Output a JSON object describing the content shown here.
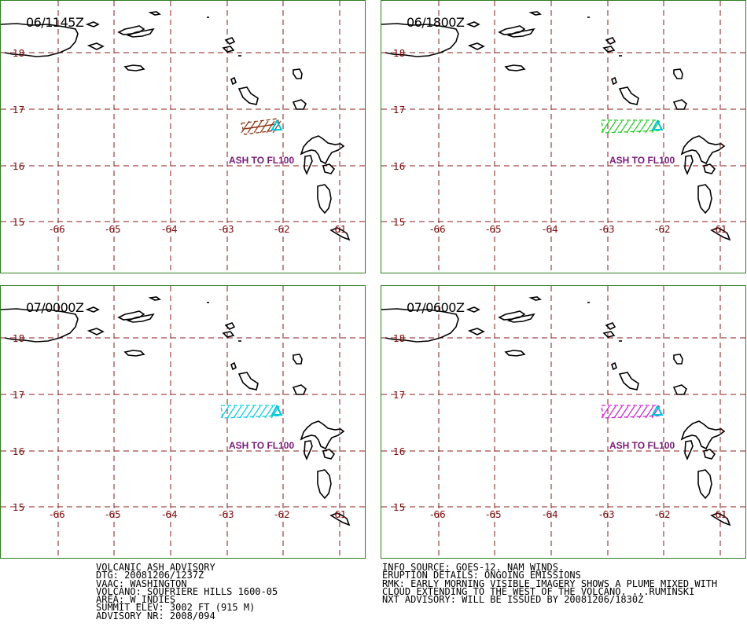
{
  "colors": {
    "panel_border": "#2e7d1f",
    "grid": "#8b1a1a",
    "coast": "#000000",
    "volcano_marker": "#00c8d8",
    "ash_label": "#7a1a7a"
  },
  "map": {
    "lon_ticks": [
      "-66",
      "-65",
      "-64",
      "-63",
      "-62",
      "-61"
    ],
    "lat_ticks": [
      "18",
      "17",
      "16",
      "15"
    ],
    "ash_label": "ASH TO FL100",
    "gridlines": "dashed"
  },
  "panels": [
    {
      "title": "06/1145Z",
      "plume_color": "#8b3a1a"
    },
    {
      "title": "06/1800Z",
      "plume_color": "#22cc22"
    },
    {
      "title": "07/0000Z",
      "plume_color": "#00d0e0"
    },
    {
      "title": "07/0600Z",
      "plume_color": "#d020d0"
    }
  ],
  "advisory_left": [
    "VOLCANIC ASH ADVISORY",
    "DTG: 20081206/1237Z",
    "VAAC: WASHINGTON",
    "VOLCANO: SOUFRIERE HILLS 1600-05",
    "AREA: W_INDIES",
    "SUMMIT ELEV: 3002 FT (915 M)",
    "ADVISORY NR: 2008/094"
  ],
  "advisory_right": [
    "INFO SOURCE: GOES-12. NAM WINDS.",
    "ERUPTION DETAILS: ONGOING EMISSIONS",
    "RMK: EARLY MORNING VISIBLE IMAGERY SHOWS A PLUME MIXED WITH",
    "CLOUD EXTENDING TO THE WEST OF THE VOLCANO. ...RUMINSKI",
    "NXT ADVISORY: WILL BE ISSUED BY 20081206/1830Z"
  ]
}
